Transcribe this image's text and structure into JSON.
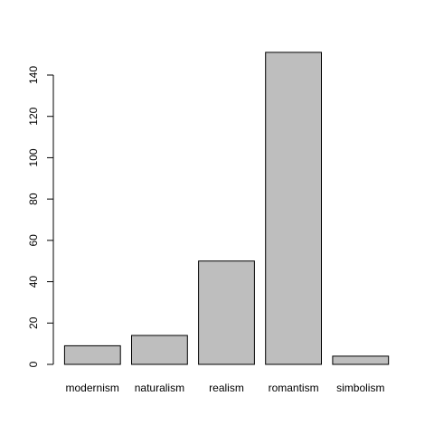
{
  "chart_data": {
    "type": "bar",
    "title": "",
    "xlabel": "",
    "ylabel": "",
    "categories": [
      "modernism",
      "naturalism",
      "realism",
      "romantism",
      "simbolism"
    ],
    "values": [
      9,
      14,
      50,
      151,
      4
    ],
    "ylim": [
      0,
      155
    ],
    "yticks": [
      0,
      20,
      40,
      60,
      80,
      100,
      120,
      140
    ],
    "grid": false,
    "legend": "none",
    "bar_color": "#bebebe",
    "bar_border_color": "#000000"
  }
}
